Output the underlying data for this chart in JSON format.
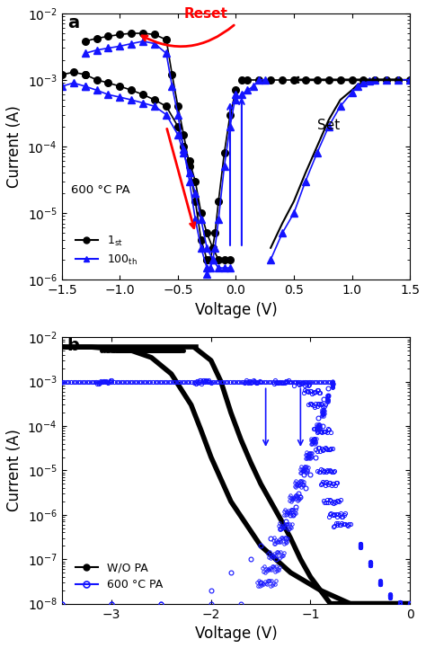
{
  "panel_a": {
    "xlabel": "Voltage (V)",
    "ylabel": "Current (A)",
    "xlim": [
      -1.5,
      1.5
    ],
    "black_color": "#000000",
    "blue_color": "#1414FF",
    "red_color": "#FF0000",
    "annotation_600C": "600 °C PA",
    "reset_label": "Reset",
    "set_label": "Set"
  },
  "panel_b": {
    "xlabel": "Voltage (V)",
    "ylabel": "Current (A)",
    "xlim": [
      -3.5,
      0.0
    ],
    "black_color": "#000000",
    "blue_color": "#1414FF",
    "legend_wo": "W/O PA",
    "legend_600": "600 °C PA"
  }
}
